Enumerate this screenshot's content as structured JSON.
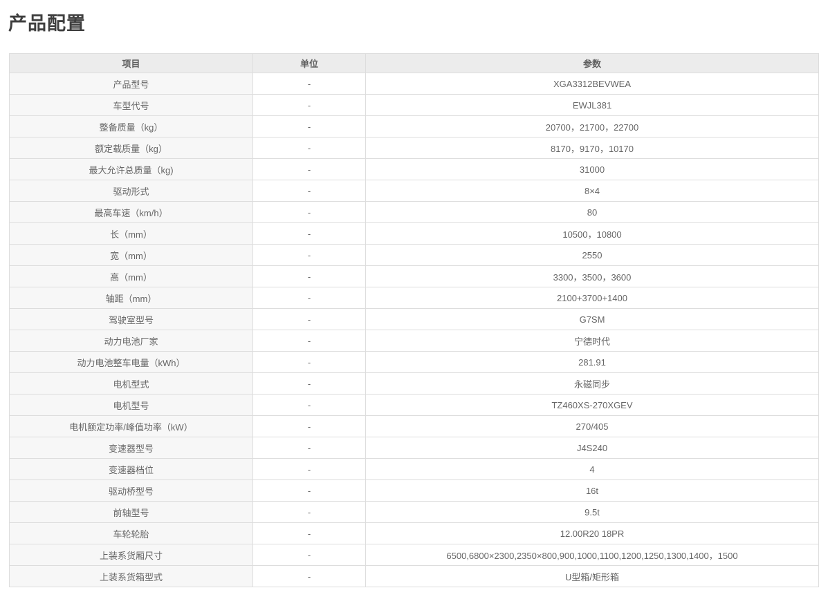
{
  "page_title": "产品配置",
  "table": {
    "headers": [
      "项目",
      "单位",
      "参数"
    ],
    "rows": [
      {
        "item": "产品型号",
        "unit": "-",
        "value": "XGA3312BEVWEA"
      },
      {
        "item": "车型代号",
        "unit": "-",
        "value": "EWJL381"
      },
      {
        "item": "整备质量（kg）",
        "unit": "-",
        "value": "20700，21700，22700"
      },
      {
        "item": "额定载质量（kg）",
        "unit": "-",
        "value": "8170，9170，10170"
      },
      {
        "item": "最大允许总质量（kg)",
        "unit": "-",
        "value": "31000"
      },
      {
        "item": "驱动形式",
        "unit": "-",
        "value": "8×4"
      },
      {
        "item": "最高车速（km/h）",
        "unit": "-",
        "value": "80"
      },
      {
        "item": "长（mm）",
        "unit": "-",
        "value": "10500，10800"
      },
      {
        "item": "宽（mm）",
        "unit": "-",
        "value": "2550"
      },
      {
        "item": "高（mm）",
        "unit": "-",
        "value": "3300，3500，3600"
      },
      {
        "item": "轴距（mm）",
        "unit": "-",
        "value": "2100+3700+1400"
      },
      {
        "item": "驾驶室型号",
        "unit": "-",
        "value": "G7SM"
      },
      {
        "item": "动力电池厂家",
        "unit": "-",
        "value": "宁德时代"
      },
      {
        "item": "动力电池整车电量（kWh）",
        "unit": "-",
        "value": "281.91"
      },
      {
        "item": "电机型式",
        "unit": "-",
        "value": "永磁同步"
      },
      {
        "item": "电机型号",
        "unit": "-",
        "value": "TZ460XS-270XGEV"
      },
      {
        "item": "电机额定功率/峰值功率（kW）",
        "unit": "-",
        "value": "270/405"
      },
      {
        "item": "变速器型号",
        "unit": "-",
        "value": "J4S240"
      },
      {
        "item": "变速器档位",
        "unit": "-",
        "value": "4"
      },
      {
        "item": "驱动桥型号",
        "unit": "-",
        "value": "16t"
      },
      {
        "item": "前轴型号",
        "unit": "-",
        "value": "9.5t"
      },
      {
        "item": "车轮轮胎",
        "unit": "-",
        "value": "12.00R20 18PR"
      },
      {
        "item": "上装系货厢尺寸",
        "unit": "-",
        "value": "6500,6800×2300,2350×800,900,1000,1100,1200,1250,1300,1400，1500"
      },
      {
        "item": "上装系货箱型式",
        "unit": "-",
        "value": "U型箱/矩形箱"
      }
    ]
  },
  "colors": {
    "header_bg": "#ececec",
    "item_column_bg": "#f7f7f7",
    "border": "#dddddd",
    "text": "#666666",
    "title_text": "#3f3f3f"
  }
}
